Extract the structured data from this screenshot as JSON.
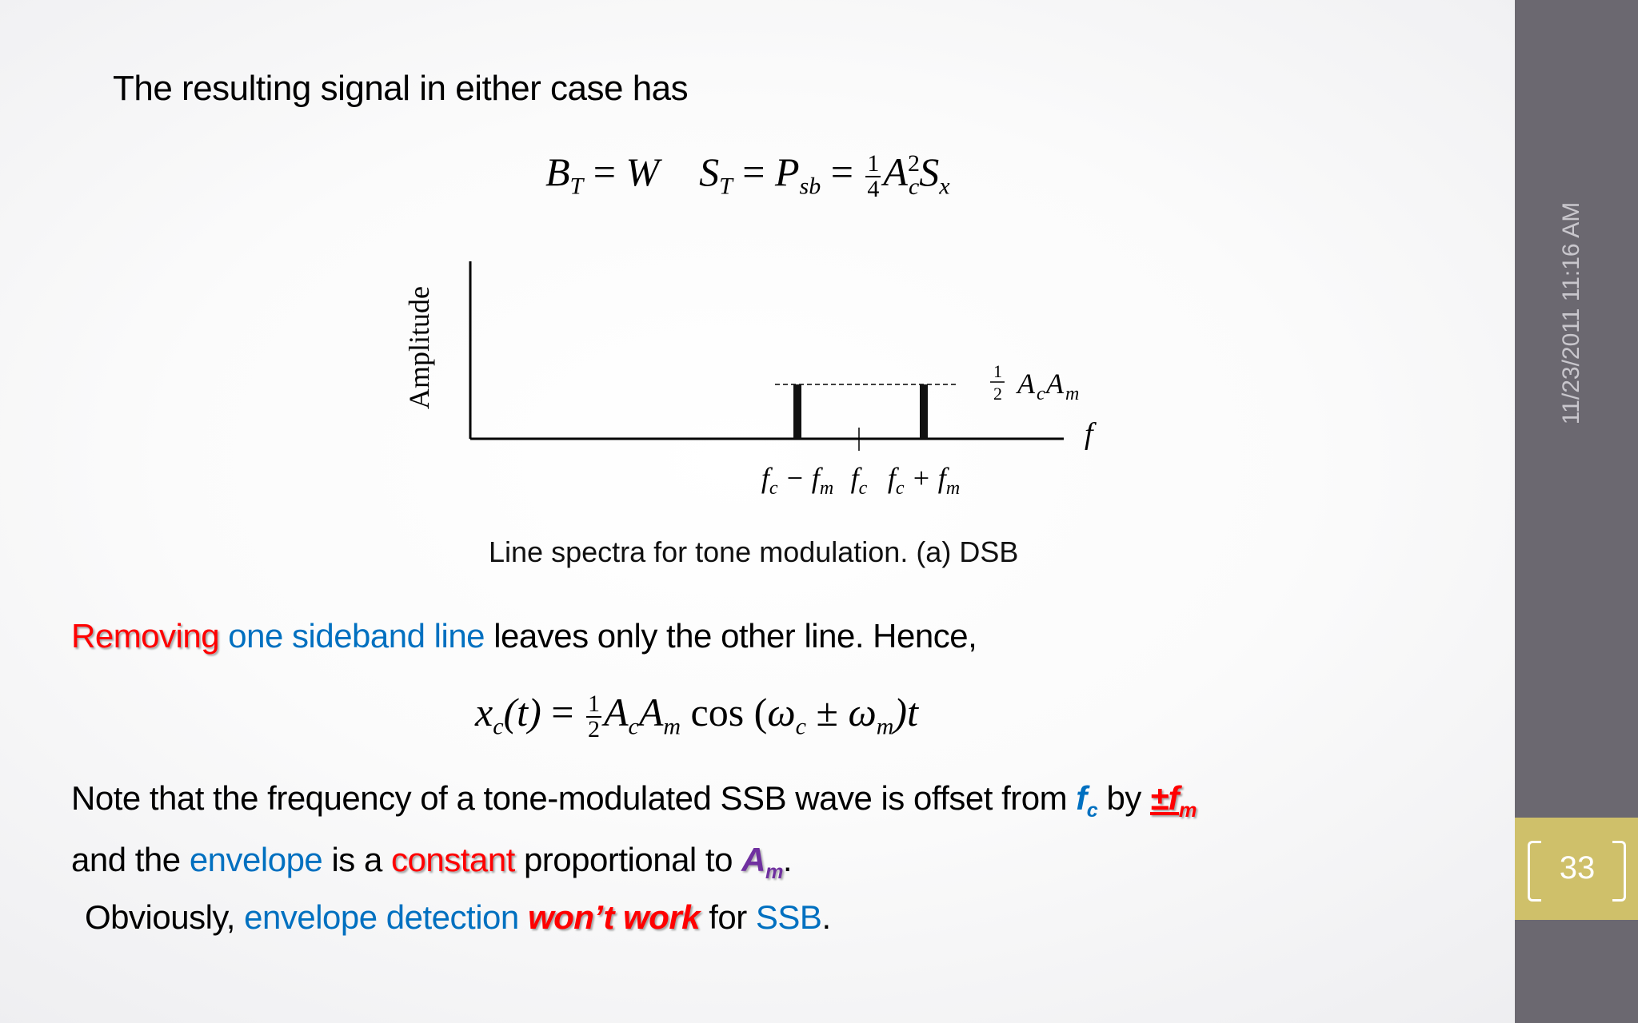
{
  "heading": "The resulting signal in either case has",
  "equation1": {
    "BT": "B",
    "T_sub": "T",
    "eq": "=",
    "W": "W",
    "ST": "S",
    "Psb": "P",
    "sb_sub": "sb",
    "num": "1",
    "den": "4",
    "A": "A",
    "c_sub": "c",
    "sq": "2",
    "Sx": "S",
    "x_sub": "x"
  },
  "chart_data": {
    "type": "bar",
    "title": "",
    "ylabel": "Amplitude",
    "xlabel": "f",
    "categories": [
      "fc − fm",
      "fc",
      "fc + fm"
    ],
    "values": [
      0.5,
      0,
      0.5
    ],
    "value_label": "½ AcAm",
    "tick_labels": [
      {
        "main": "f",
        "sub": "c",
        "rest": "− ",
        "main2": "f",
        "sub2": "m"
      },
      {
        "main": "f",
        "sub": "c",
        "rest": "",
        "main2": "",
        "sub2": ""
      },
      {
        "main": "f",
        "sub": "c",
        "rest": "+ ",
        "main2": "f",
        "sub2": "m"
      }
    ],
    "amp_label": {
      "num": "1",
      "den": "2",
      "A1": "A",
      "s1": "c",
      "A2": "A",
      "s2": "m"
    }
  },
  "caption": "Line spectra for tone modulation. (a) DSB",
  "para1": {
    "w1": "Removing",
    "w2": "one sideband line",
    "w3": " leaves only the other line. Hence,"
  },
  "equation2": {
    "x": "x",
    "c": "c",
    "t": "(t)",
    "eq": " = ",
    "num": "1",
    "den": "2",
    "A": "A",
    "m": "m",
    "cos": " cos (",
    "w": "ω",
    "pm": " ± ",
    "end": ")t"
  },
  "para2": {
    "a": "Note that the frequency of a tone-modulated SSB wave is offset from ",
    "fc": "f",
    "fc_sub": "c",
    "b": " by ",
    "pmf": "±f",
    "pmf_sub": "m",
    "c": "and the ",
    "envelope": "envelope",
    "d": " is a ",
    "constant": "constant",
    "e": " proportional to ",
    "Am": "A",
    "Am_sub": "m",
    "f": "."
  },
  "para3": {
    "a": "Obviously, ",
    "b": "envelope detection",
    "c": "won’t work",
    "d": " for ",
    "e": "SSB",
    "f": "."
  },
  "sidebar": {
    "date": "11/23/2011 11:16 AM",
    "page": "33"
  },
  "colors": {
    "blue": "#0070c0",
    "red": "#ff0000",
    "purple": "#7030a0",
    "sidebar": "#6b6870",
    "page_box": "#cfc06a"
  }
}
